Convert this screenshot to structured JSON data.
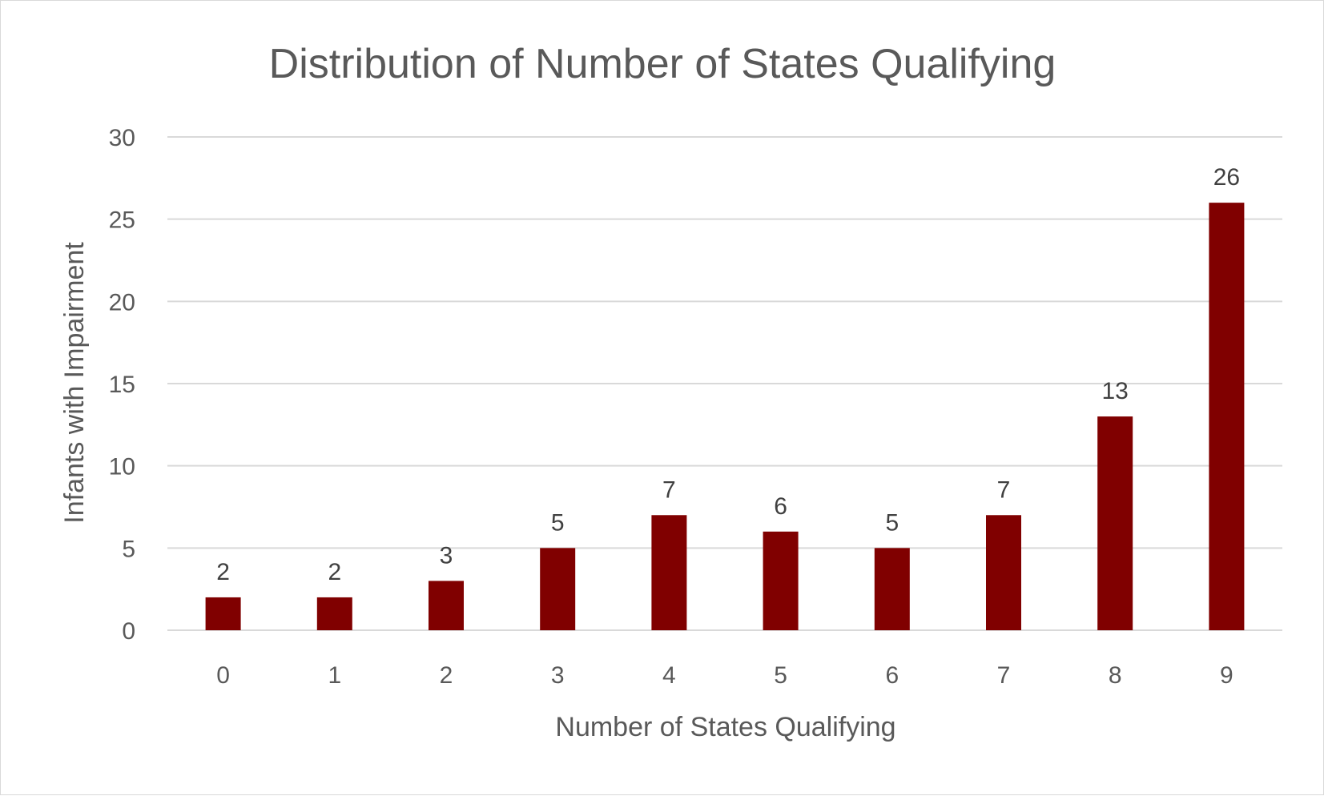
{
  "chart_data": {
    "type": "bar",
    "title": "Distribution of Number of States Qualifying",
    "xlabel": "Number of States Qualifying",
    "ylabel": "Infants with Impairment",
    "categories": [
      "0",
      "1",
      "2",
      "3",
      "4",
      "5",
      "6",
      "7",
      "8",
      "9"
    ],
    "values": [
      2,
      2,
      3,
      5,
      7,
      6,
      5,
      7,
      13,
      26
    ],
    "ylim": [
      0,
      30
    ],
    "yticks": [
      0,
      5,
      10,
      15,
      20,
      25,
      30
    ],
    "grid": true,
    "legend": "none",
    "bar_color": "#800000"
  }
}
